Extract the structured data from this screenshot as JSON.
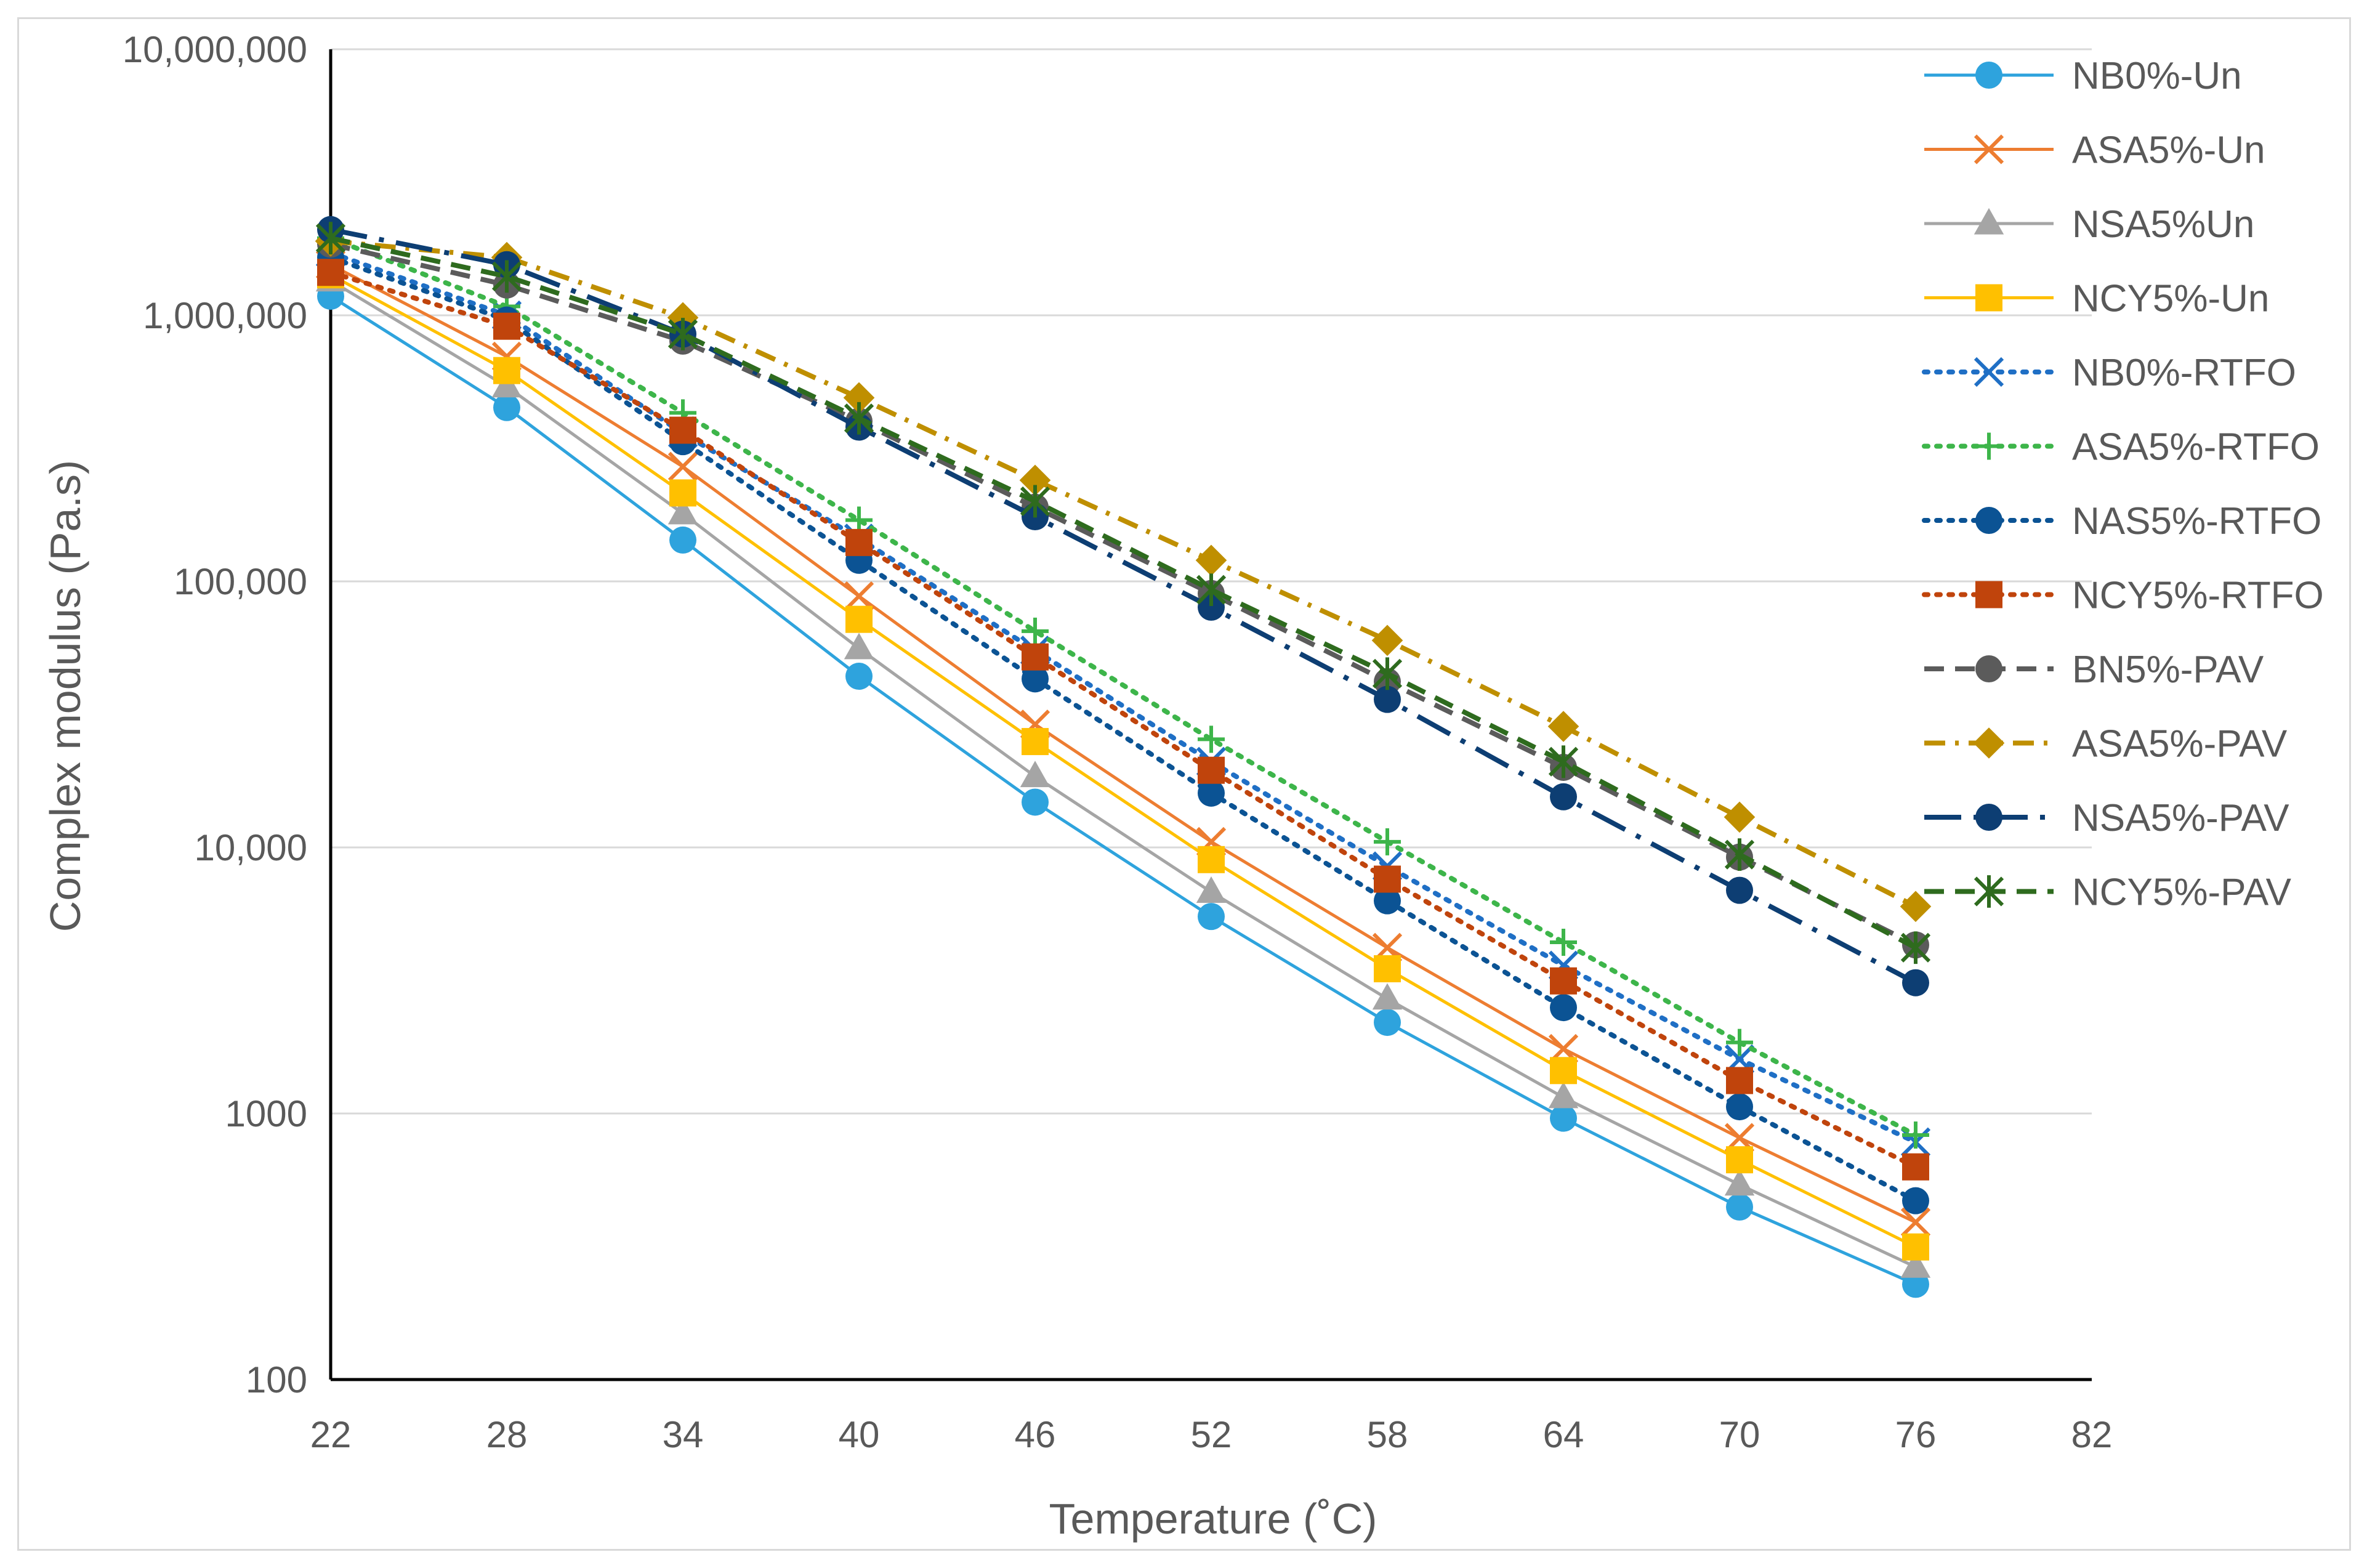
{
  "chart_data": {
    "type": "line",
    "title": "",
    "xlabel": "Temperature (˚C)",
    "ylabel": "Complex modulus (Pa.s)",
    "yscale": "log",
    "xlim": [
      22,
      82
    ],
    "ylim": [
      100,
      10000000
    ],
    "x_ticks": [
      "22",
      "28",
      "34",
      "40",
      "46",
      "52",
      "58",
      "64",
      "70",
      "76",
      "82"
    ],
    "y_ticks": [
      "100",
      "1000",
      "10,000",
      "100,000",
      "1,000,000",
      "10,000,000"
    ],
    "grid": true,
    "legend_position": "right",
    "x": [
      22,
      28,
      34,
      40,
      46,
      52,
      58,
      64,
      70,
      76
    ],
    "series": [
      {
        "name": "NB0%-Un",
        "color": "#2EA3DD",
        "dash": "solid",
        "marker": "circle",
        "values": [
          1180000,
          450000,
          143000,
          44000,
          14800,
          5500,
          2200,
          960,
          445,
          228
        ]
      },
      {
        "name": "ASA5%-Un",
        "color": "#ED7D31",
        "dash": "solid",
        "marker": "x",
        "values": [
          1550000,
          700000,
          270000,
          88000,
          29000,
          10500,
          4200,
          1750,
          810,
          390
        ]
      },
      {
        "name": "NSA5%Un",
        "color": "#A5A5A5",
        "dash": "solid",
        "marker": "triangle",
        "values": [
          1350000,
          540000,
          180000,
          56000,
          18500,
          6800,
          2700,
          1150,
          540,
          265
        ]
      },
      {
        "name": "NCY5%-Un",
        "color": "#FFC000",
        "dash": "solid",
        "marker": "square",
        "values": [
          1420000,
          620000,
          215000,
          72000,
          25000,
          9000,
          3500,
          1450,
          670,
          315
        ]
      },
      {
        "name": "NB0%-RTFO",
        "color": "#1F6FC5",
        "dash": "dot",
        "marker": "x",
        "values": [
          1720000,
          1000000,
          360000,
          145000,
          55000,
          21000,
          8500,
          3600,
          1600,
          780
        ]
      },
      {
        "name": "ASA5%-RTFO",
        "color": "#3DB54A",
        "dash": "dot",
        "marker": "plus",
        "values": [
          1950000,
          1080000,
          430000,
          170000,
          65000,
          25500,
          10500,
          4400,
          1850,
          830
        ]
      },
      {
        "name": "NAS5%-RTFO",
        "color": "#0B5394",
        "dash": "dot",
        "marker": "circle",
        "values": [
          1650000,
          960000,
          335000,
          120000,
          43000,
          16000,
          6300,
          2500,
          1060,
          470
        ]
      },
      {
        "name": "NCY5%-RTFO",
        "color": "#C0440C",
        "dash": "dot",
        "marker": "square",
        "values": [
          1450000,
          910000,
          370000,
          140000,
          52000,
          19500,
          7600,
          3150,
          1330,
          630
        ]
      },
      {
        "name": "BN5%-PAV",
        "color": "#5B5B5B",
        "dash": "dash",
        "marker": "circle",
        "values": [
          1850000,
          1300000,
          800000,
          400000,
          190000,
          90000,
          42000,
          20000,
          9200,
          4300
        ]
      },
      {
        "name": "ASA5%-PAV",
        "color": "#BF8F00",
        "dash": "dashdot",
        "marker": "diamond",
        "values": [
          1900000,
          1650000,
          980000,
          490000,
          240000,
          120000,
          60000,
          28500,
          13000,
          6000
        ]
      },
      {
        "name": "NSA5%-PAV",
        "color": "#0D3E73",
        "dash": "longdashdot",
        "marker": "circle",
        "values": [
          2100000,
          1550000,
          850000,
          380000,
          175000,
          80000,
          36000,
          15500,
          6900,
          3100
        ]
      },
      {
        "name": "NCY5%-PAV",
        "color": "#2E6B1E",
        "dash": "dash",
        "marker": "star",
        "values": [
          1950000,
          1400000,
          850000,
          410000,
          200000,
          93000,
          45000,
          21000,
          9400,
          4200
        ]
      }
    ]
  }
}
